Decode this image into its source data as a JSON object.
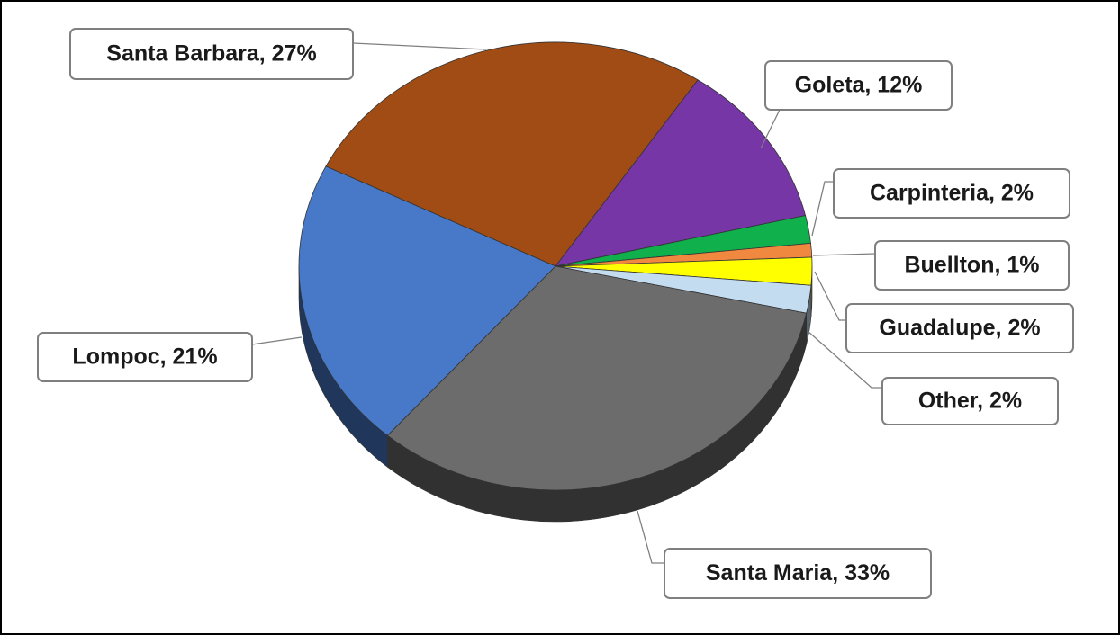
{
  "chart_data": {
    "type": "pie",
    "values": [
      27,
      12,
      2,
      1,
      2,
      2,
      33,
      21
    ],
    "value_labels": [
      "Santa Barbara, 27%",
      "Goleta, 12%",
      "Carpinteria, 2%",
      "Buellton, 1%",
      "Guadalupe, 2%",
      "Other, 2%",
      "Santa Maria, 33%",
      "Lompoc, 21%"
    ],
    "colors": [
      "#a04c14",
      "#7636a6",
      "#10b04c",
      "#f08840",
      "#ffff00",
      "#c4dcf0",
      "#6c6c6c",
      "#4878c8"
    ],
    "three_d": true
  }
}
